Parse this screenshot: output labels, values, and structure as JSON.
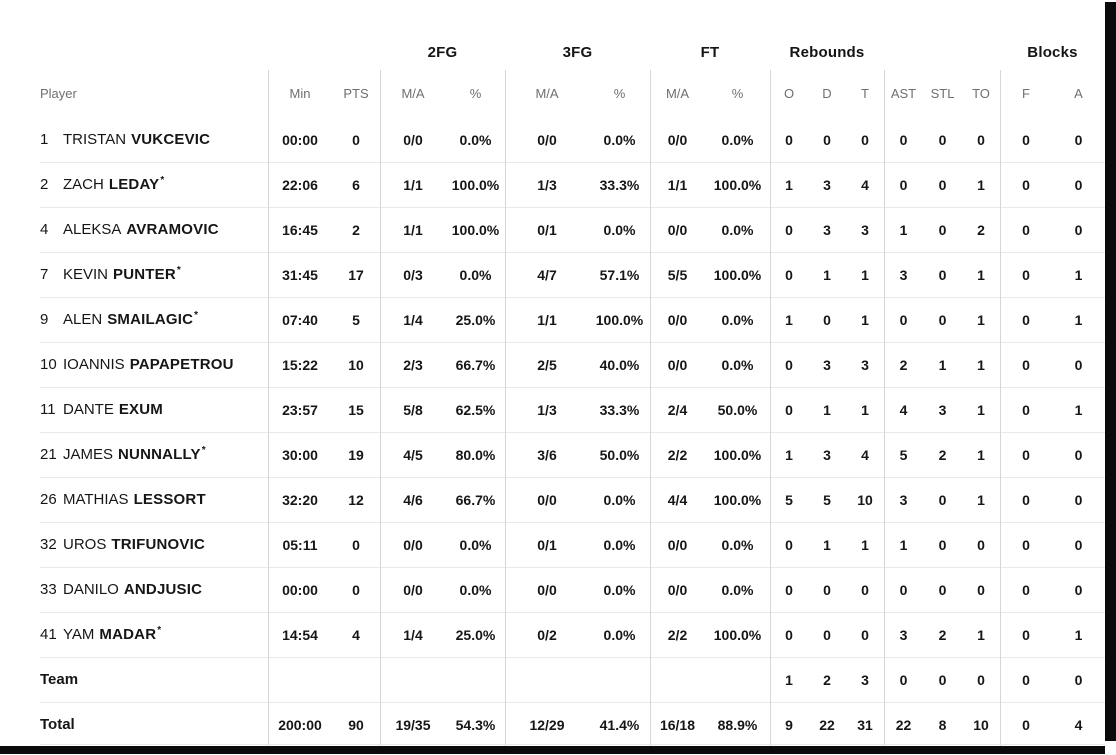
{
  "frame": {
    "edge_color": "#0b0b0b"
  },
  "table": {
    "starter_mark": "*",
    "groups": [
      {
        "label": ""
      },
      {
        "label": "2FG"
      },
      {
        "label": "3FG"
      },
      {
        "label": "FT"
      },
      {
        "label": "Rebounds"
      },
      {
        "label": ""
      },
      {
        "label": "Blocks"
      }
    ],
    "headers": {
      "player": "Player",
      "min": "Min",
      "pts": "PTS",
      "ma": "M/A",
      "pct": "%",
      "o": "O",
      "d": "D",
      "t": "T",
      "ast": "AST",
      "stl": "STL",
      "to": "TO",
      "f": "F",
      "a": "A"
    },
    "players": [
      {
        "number": "1",
        "first": "TRISTAN",
        "last": "VUKCEVIC",
        "starter": false,
        "stats": {
          "min": "00:00",
          "pts": "0",
          "fg2_ma": "0/0",
          "fg2_pct": "0.0%",
          "fg3_ma": "0/0",
          "fg3_pct": "0.0%",
          "ft_ma": "0/0",
          "ft_pct": "0.0%",
          "reb_o": "0",
          "reb_d": "0",
          "reb_t": "0",
          "ast": "0",
          "stl": "0",
          "to": "0",
          "blk_f": "0",
          "blk_a": "0"
        }
      },
      {
        "number": "2",
        "first": "ZACH",
        "last": "LEDAY",
        "starter": true,
        "stats": {
          "min": "22:06",
          "pts": "6",
          "fg2_ma": "1/1",
          "fg2_pct": "100.0%",
          "fg3_ma": "1/3",
          "fg3_pct": "33.3%",
          "ft_ma": "1/1",
          "ft_pct": "100.0%",
          "reb_o": "1",
          "reb_d": "3",
          "reb_t": "4",
          "ast": "0",
          "stl": "0",
          "to": "1",
          "blk_f": "0",
          "blk_a": "0"
        }
      },
      {
        "number": "4",
        "first": "ALEKSA",
        "last": "AVRAMOVIC",
        "starter": false,
        "stats": {
          "min": "16:45",
          "pts": "2",
          "fg2_ma": "1/1",
          "fg2_pct": "100.0%",
          "fg3_ma": "0/1",
          "fg3_pct": "0.0%",
          "ft_ma": "0/0",
          "ft_pct": "0.0%",
          "reb_o": "0",
          "reb_d": "3",
          "reb_t": "3",
          "ast": "1",
          "stl": "0",
          "to": "2",
          "blk_f": "0",
          "blk_a": "0"
        }
      },
      {
        "number": "7",
        "first": "KEVIN",
        "last": "PUNTER",
        "starter": true,
        "stats": {
          "min": "31:45",
          "pts": "17",
          "fg2_ma": "0/3",
          "fg2_pct": "0.0%",
          "fg3_ma": "4/7",
          "fg3_pct": "57.1%",
          "ft_ma": "5/5",
          "ft_pct": "100.0%",
          "reb_o": "0",
          "reb_d": "1",
          "reb_t": "1",
          "ast": "3",
          "stl": "0",
          "to": "1",
          "blk_f": "0",
          "blk_a": "1"
        }
      },
      {
        "number": "9",
        "first": "ALEN",
        "last": "SMAILAGIC",
        "starter": true,
        "stats": {
          "min": "07:40",
          "pts": "5",
          "fg2_ma": "1/4",
          "fg2_pct": "25.0%",
          "fg3_ma": "1/1",
          "fg3_pct": "100.0%",
          "ft_ma": "0/0",
          "ft_pct": "0.0%",
          "reb_o": "1",
          "reb_d": "0",
          "reb_t": "1",
          "ast": "0",
          "stl": "0",
          "to": "1",
          "blk_f": "0",
          "blk_a": "1"
        }
      },
      {
        "number": "10",
        "first": "IOANNIS",
        "last": "PAPAPETROU",
        "starter": false,
        "stats": {
          "min": "15:22",
          "pts": "10",
          "fg2_ma": "2/3",
          "fg2_pct": "66.7%",
          "fg3_ma": "2/5",
          "fg3_pct": "40.0%",
          "ft_ma": "0/0",
          "ft_pct": "0.0%",
          "reb_o": "0",
          "reb_d": "3",
          "reb_t": "3",
          "ast": "2",
          "stl": "1",
          "to": "1",
          "blk_f": "0",
          "blk_a": "0"
        }
      },
      {
        "number": "11",
        "first": "DANTE",
        "last": "EXUM",
        "starter": false,
        "stats": {
          "min": "23:57",
          "pts": "15",
          "fg2_ma": "5/8",
          "fg2_pct": "62.5%",
          "fg3_ma": "1/3",
          "fg3_pct": "33.3%",
          "ft_ma": "2/4",
          "ft_pct": "50.0%",
          "reb_o": "0",
          "reb_d": "1",
          "reb_t": "1",
          "ast": "4",
          "stl": "3",
          "to": "1",
          "blk_f": "0",
          "blk_a": "1"
        }
      },
      {
        "number": "21",
        "first": "JAMES",
        "last": "NUNNALLY",
        "starter": true,
        "stats": {
          "min": "30:00",
          "pts": "19",
          "fg2_ma": "4/5",
          "fg2_pct": "80.0%",
          "fg3_ma": "3/6",
          "fg3_pct": "50.0%",
          "ft_ma": "2/2",
          "ft_pct": "100.0%",
          "reb_o": "1",
          "reb_d": "3",
          "reb_t": "4",
          "ast": "5",
          "stl": "2",
          "to": "1",
          "blk_f": "0",
          "blk_a": "0"
        }
      },
      {
        "number": "26",
        "first": "MATHIAS",
        "last": "LESSORT",
        "starter": false,
        "stats": {
          "min": "32:20",
          "pts": "12",
          "fg2_ma": "4/6",
          "fg2_pct": "66.7%",
          "fg3_ma": "0/0",
          "fg3_pct": "0.0%",
          "ft_ma": "4/4",
          "ft_pct": "100.0%",
          "reb_o": "5",
          "reb_d": "5",
          "reb_t": "10",
          "ast": "3",
          "stl": "0",
          "to": "1",
          "blk_f": "0",
          "blk_a": "0"
        }
      },
      {
        "number": "32",
        "first": "UROS",
        "last": "TRIFUNOVIC",
        "starter": false,
        "stats": {
          "min": "05:11",
          "pts": "0",
          "fg2_ma": "0/0",
          "fg2_pct": "0.0%",
          "fg3_ma": "0/1",
          "fg3_pct": "0.0%",
          "ft_ma": "0/0",
          "ft_pct": "0.0%",
          "reb_o": "0",
          "reb_d": "1",
          "reb_t": "1",
          "ast": "1",
          "stl": "0",
          "to": "0",
          "blk_f": "0",
          "blk_a": "0"
        }
      },
      {
        "number": "33",
        "first": "DANILO",
        "last": "ANDJUSIC",
        "starter": false,
        "stats": {
          "min": "00:00",
          "pts": "0",
          "fg2_ma": "0/0",
          "fg2_pct": "0.0%",
          "fg3_ma": "0/0",
          "fg3_pct": "0.0%",
          "ft_ma": "0/0",
          "ft_pct": "0.0%",
          "reb_o": "0",
          "reb_d": "0",
          "reb_t": "0",
          "ast": "0",
          "stl": "0",
          "to": "0",
          "blk_f": "0",
          "blk_a": "0"
        }
      },
      {
        "number": "41",
        "first": "YAM",
        "last": "MADAR",
        "starter": true,
        "stats": {
          "min": "14:54",
          "pts": "4",
          "fg2_ma": "1/4",
          "fg2_pct": "25.0%",
          "fg3_ma": "0/2",
          "fg3_pct": "0.0%",
          "ft_ma": "2/2",
          "ft_pct": "100.0%",
          "reb_o": "0",
          "reb_d": "0",
          "reb_t": "0",
          "ast": "3",
          "stl": "2",
          "to": "1",
          "blk_f": "0",
          "blk_a": "1"
        }
      }
    ],
    "summary": [
      {
        "label": "Team",
        "stats": {
          "min": "",
          "pts": "",
          "fg2_ma": "",
          "fg2_pct": "",
          "fg3_ma": "",
          "fg3_pct": "",
          "ft_ma": "",
          "ft_pct": "",
          "reb_o": "1",
          "reb_d": "2",
          "reb_t": "3",
          "ast": "0",
          "stl": "0",
          "to": "0",
          "blk_f": "0",
          "blk_a": "0"
        }
      },
      {
        "label": "Total",
        "stats": {
          "min": "200:00",
          "pts": "90",
          "fg2_ma": "19/35",
          "fg2_pct": "54.3%",
          "fg3_ma": "12/29",
          "fg3_pct": "41.4%",
          "ft_ma": "16/18",
          "ft_pct": "88.9%",
          "reb_o": "9",
          "reb_d": "22",
          "reb_t": "31",
          "ast": "22",
          "stl": "8",
          "to": "10",
          "blk_f": "0",
          "blk_a": "4"
        }
      }
    ]
  }
}
